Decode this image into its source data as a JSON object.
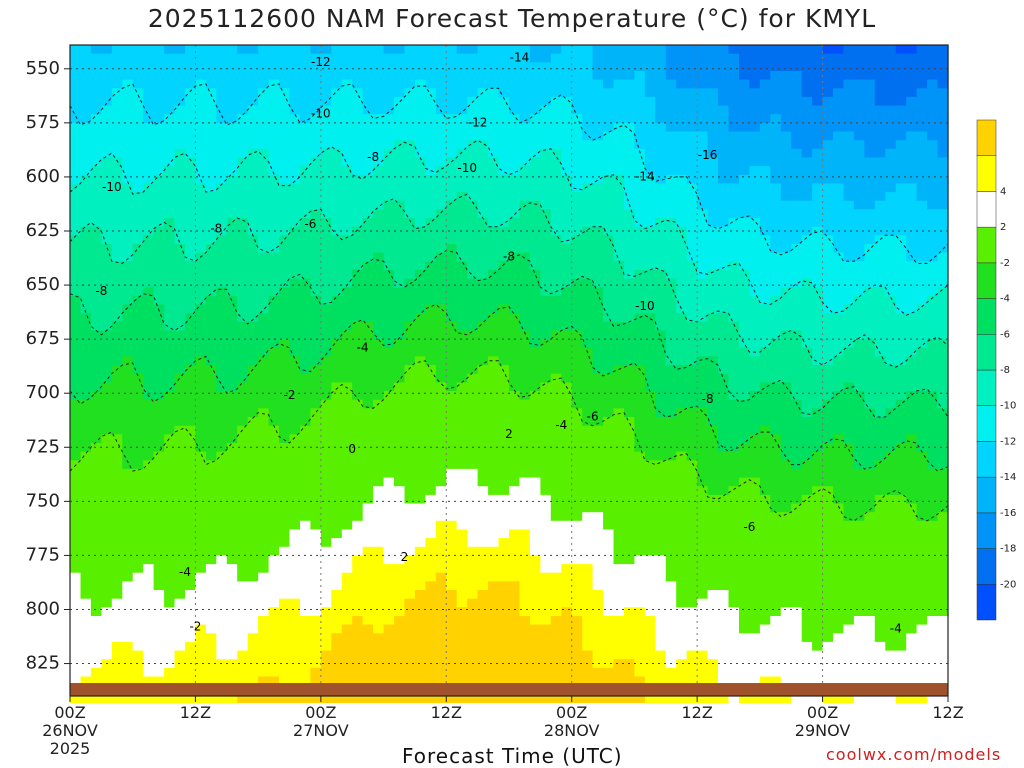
{
  "chart_data": {
    "type": "heatmap",
    "title": "2025112600 NAM Forecast Temperature (°C) for KMYL",
    "xlabel": "Forecast Time (UTC)",
    "ylabel": "",
    "credit": "coolwx.com/models",
    "x_ticks": [
      {
        "hour": 0,
        "label": "00Z",
        "sub": "26NOV",
        "sub2": "2025"
      },
      {
        "hour": 12,
        "label": "12Z"
      },
      {
        "hour": 24,
        "label": "00Z",
        "sub": "27NOV"
      },
      {
        "hour": 36,
        "label": "12Z"
      },
      {
        "hour": 48,
        "label": "00Z",
        "sub": "28NOV"
      },
      {
        "hour": 60,
        "label": "12Z"
      },
      {
        "hour": 72,
        "label": "00Z",
        "sub": "29NOV"
      },
      {
        "hour": 84,
        "label": "12Z"
      }
    ],
    "x_range_hours": [
      0,
      84
    ],
    "y_ticks": [
      550,
      575,
      600,
      625,
      650,
      675,
      700,
      725,
      750,
      775,
      800,
      825
    ],
    "y_range_hpa": [
      539,
      840
    ],
    "ground_top_hpa": 834,
    "grid": true,
    "colorbar": {
      "position": "right",
      "levels": [
        -22,
        -20,
        -18,
        -16,
        -14,
        -12,
        -10,
        -8,
        -6,
        -4,
        -2,
        2,
        4,
        6
      ],
      "labels": [
        "-20",
        "-18",
        "-16",
        "-14",
        "-12",
        "-10",
        "-8",
        "-6",
        "-4",
        "-2",
        "2",
        "4"
      ],
      "colors": [
        "#0050ff",
        "#0070f0",
        "#0094f8",
        "#00b4fa",
        "#00d4ff",
        "#00f0f0",
        "#00f0c0",
        "#00e890",
        "#00e060",
        "#20e020",
        "#58f000",
        "#ffffff",
        "#ffff00",
        "#ffd200"
      ]
    },
    "contour_labels": [
      {
        "text": "-12",
        "hour": 24,
        "hpa": 547
      },
      {
        "text": "-14",
        "hour": 43,
        "hpa": 545
      },
      {
        "text": "-10",
        "hour": 4,
        "hpa": 605
      },
      {
        "text": "-10",
        "hour": 24,
        "hpa": 571
      },
      {
        "text": "-12",
        "hour": 39,
        "hpa": 575
      },
      {
        "text": "-8",
        "hour": 29,
        "hpa": 591
      },
      {
        "text": "-10",
        "hour": 38,
        "hpa": 596
      },
      {
        "text": "-16",
        "hour": 61,
        "hpa": 590
      },
      {
        "text": "-14",
        "hour": 55,
        "hpa": 600
      },
      {
        "text": "-8",
        "hour": 14,
        "hpa": 624
      },
      {
        "text": "-6",
        "hour": 23,
        "hpa": 622
      },
      {
        "text": "-8",
        "hour": 3,
        "hpa": 653
      },
      {
        "text": "-8",
        "hour": 42,
        "hpa": 637
      },
      {
        "text": "-10",
        "hour": 55,
        "hpa": 660
      },
      {
        "text": "-4",
        "hour": 28,
        "hpa": 679
      },
      {
        "text": "-2",
        "hour": 21,
        "hpa": 701
      },
      {
        "text": "-8",
        "hour": 61,
        "hpa": 703
      },
      {
        "text": "0",
        "hour": 27,
        "hpa": 726
      },
      {
        "text": "2",
        "hour": 42,
        "hpa": 719
      },
      {
        "text": "-4",
        "hour": 47,
        "hpa": 715
      },
      {
        "text": "-6",
        "hour": 50,
        "hpa": 711
      },
      {
        "text": "-6",
        "hour": 65,
        "hpa": 762
      },
      {
        "text": "-4",
        "hour": 11,
        "hpa": 783
      },
      {
        "text": "2",
        "hour": 32,
        "hpa": 776
      },
      {
        "text": "-2",
        "hour": 12,
        "hpa": 808
      },
      {
        "text": "-4",
        "hour": 79,
        "hpa": 809
      }
    ]
  }
}
